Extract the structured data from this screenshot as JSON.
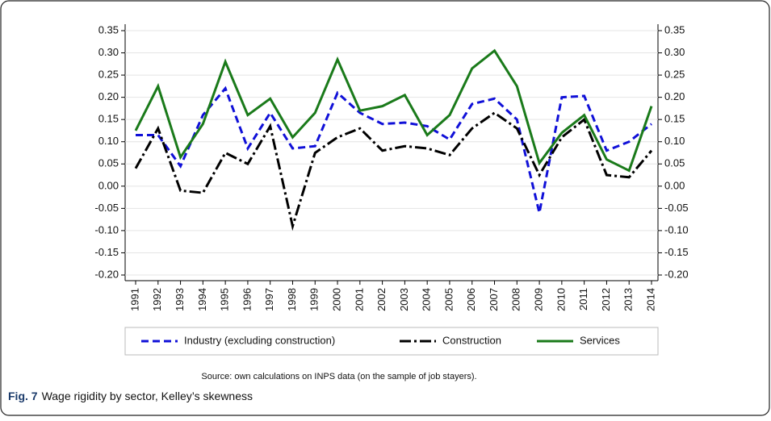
{
  "chart_data": {
    "type": "line",
    "categories": [
      "1991",
      "1992",
      "1993",
      "1994",
      "1995",
      "1996",
      "1997",
      "1998",
      "1999",
      "2000",
      "2001",
      "2002",
      "2003",
      "2004",
      "2005",
      "2006",
      "2007",
      "2008",
      "2009",
      "2010",
      "2011",
      "2012",
      "2013",
      "2014"
    ],
    "series": [
      {
        "name": "Industry (excluding construction)",
        "color": "#1010d8",
        "dash": "9,5",
        "values": [
          0.115,
          0.115,
          0.045,
          0.16,
          0.22,
          0.085,
          0.165,
          0.085,
          0.09,
          0.21,
          0.165,
          0.14,
          0.143,
          0.135,
          0.105,
          0.185,
          0.197,
          0.15,
          -0.06,
          0.2,
          0.203,
          0.08,
          0.1,
          0.14
        ]
      },
      {
        "name": "Construction",
        "color": "#000000",
        "dash": "14,4,3,4",
        "values": [
          0.04,
          0.13,
          -0.01,
          -0.015,
          0.075,
          0.05,
          0.135,
          -0.09,
          0.075,
          0.11,
          0.13,
          0.08,
          0.09,
          0.085,
          0.07,
          0.13,
          0.165,
          0.13,
          0.025,
          0.11,
          0.15,
          0.025,
          0.02,
          0.08
        ]
      },
      {
        "name": "Services",
        "color": "#1a7a1a",
        "dash": "none",
        "values": [
          0.125,
          0.225,
          0.065,
          0.14,
          0.28,
          0.16,
          0.197,
          0.11,
          0.165,
          0.285,
          0.17,
          0.18,
          0.205,
          0.115,
          0.16,
          0.265,
          0.305,
          0.225,
          0.052,
          0.12,
          0.16,
          0.06,
          0.035,
          0.18
        ]
      }
    ],
    "ylim": [
      -0.2,
      0.35
    ],
    "yticks": [
      0.35,
      {
        "value": 0.3,
        "label": "0.30"
      },
      0.25,
      {
        "value": 0.2,
        "label": "0.20"
      },
      0.15,
      {
        "value": 0.1,
        "label": "0.10"
      },
      0.05,
      {
        "value": 0,
        "label": "0.00"
      },
      -0.05,
      {
        "value": -0.1,
        "label": "-0.10"
      },
      -0.15,
      {
        "value": -0.2,
        "label": "-0.20"
      }
    ],
    "grid": true,
    "note": "Source: own calculations on INPS data (on the sample of job stayers).",
    "figure_label": "Fig. 7",
    "caption": "Wage rigidity by sector, Kelley’s skewness"
  }
}
